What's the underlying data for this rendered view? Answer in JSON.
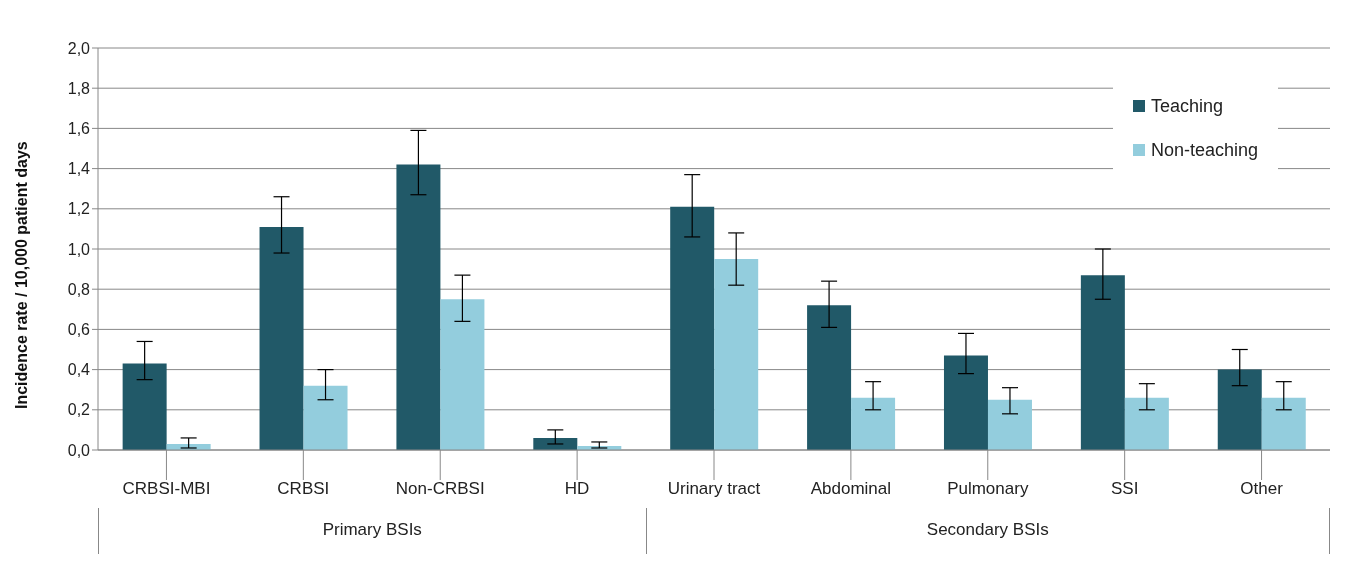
{
  "chart_data": {
    "type": "bar",
    "ylabel": "Incidence rate / 10,000 patient days",
    "categories": [
      "CRBSI-MBI",
      "CRBSI",
      "Non-CRBSI",
      "HD",
      "Urinary tract",
      "Abdominal",
      "Pulmonary",
      "SSI",
      "Other"
    ],
    "series": [
      {
        "name": "Teaching",
        "color": "#215968",
        "values": [
          0.43,
          1.11,
          1.42,
          0.06,
          1.21,
          0.72,
          0.47,
          0.87,
          0.4
        ],
        "errors": [
          [
            0.35,
            0.54
          ],
          [
            0.98,
            1.26
          ],
          [
            1.27,
            1.59
          ],
          [
            0.03,
            0.1
          ],
          [
            1.06,
            1.37
          ],
          [
            0.61,
            0.84
          ],
          [
            0.38,
            0.58
          ],
          [
            0.75,
            1.0
          ],
          [
            0.32,
            0.5
          ]
        ]
      },
      {
        "name": "Non-teaching",
        "color": "#93cddd",
        "values": [
          0.03,
          0.32,
          0.75,
          0.02,
          0.95,
          0.26,
          0.25,
          0.26,
          0.26
        ],
        "errors": [
          [
            0.01,
            0.06
          ],
          [
            0.25,
            0.4
          ],
          [
            0.64,
            0.87
          ],
          [
            0.01,
            0.04
          ],
          [
            0.82,
            1.08
          ],
          [
            0.2,
            0.34
          ],
          [
            0.18,
            0.31
          ],
          [
            0.2,
            0.33
          ],
          [
            0.2,
            0.34
          ]
        ]
      }
    ],
    "ylim": [
      0,
      2
    ],
    "yticks": [
      {
        "value": 0,
        "label": "0,0"
      },
      {
        "value": 0.2,
        "label": "0,2"
      },
      {
        "value": 0.4,
        "label": "0,4"
      },
      {
        "value": 0.6,
        "label": "0,6"
      },
      {
        "value": 0.8,
        "label": "0,8"
      },
      {
        "value": 1.0,
        "label": "1,0"
      },
      {
        "value": 1.2,
        "label": "1,2"
      },
      {
        "value": 1.4,
        "label": "1,4"
      },
      {
        "value": 1.6,
        "label": "1,6"
      },
      {
        "value": 1.8,
        "label": "1,8"
      },
      {
        "value": 2.0,
        "label": "2,0"
      }
    ],
    "grid": "y",
    "legend": "top right",
    "annotations": [
      "Primary BSIs",
      "Secondary BSIs"
    ]
  }
}
